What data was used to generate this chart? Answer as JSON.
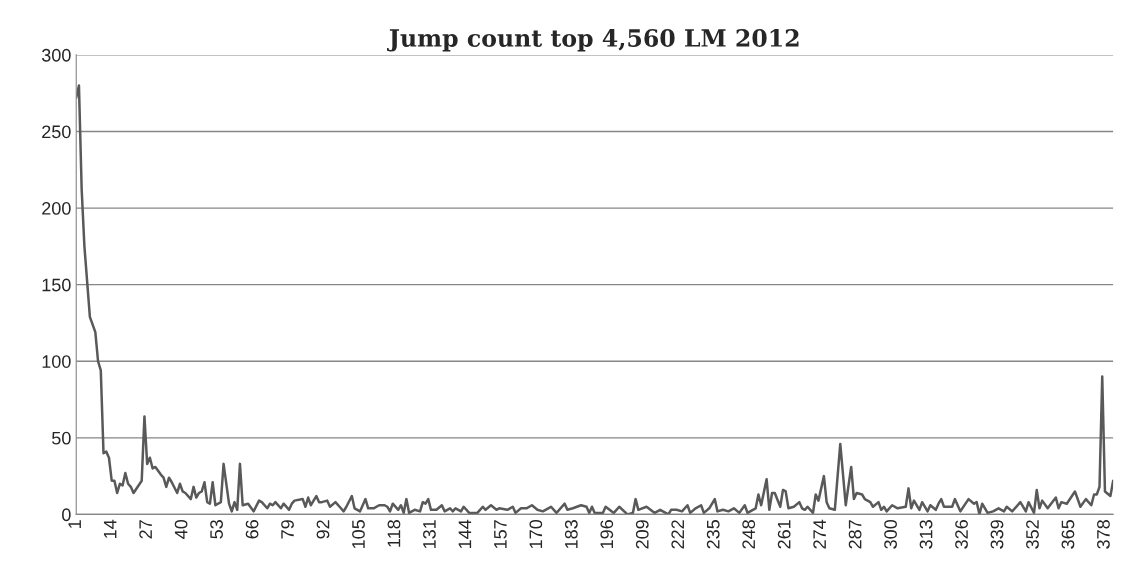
{
  "chart_data": {
    "type": "line",
    "title": "Jump count top 4,560 LM 2012",
    "x": [
      1,
      2,
      3,
      4,
      6,
      8,
      9,
      10,
      11,
      12,
      13,
      14,
      15,
      16,
      17,
      18,
      19,
      20,
      21,
      22,
      25,
      26,
      27,
      28,
      29,
      30,
      32,
      33,
      34,
      35,
      36,
      38,
      39,
      40,
      41,
      43,
      44,
      45,
      46,
      47,
      48,
      49,
      50,
      51,
      52,
      54,
      55,
      57,
      58,
      59,
      60,
      61,
      62,
      64,
      66,
      68,
      69,
      71,
      72,
      73,
      74,
      76,
      77,
      79,
      80,
      81,
      84,
      85,
      86,
      87,
      89,
      90,
      91,
      93,
      94,
      96,
      98,
      99,
      100,
      102,
      103,
      104,
      105,
      107,
      108,
      110,
      112,
      114,
      115,
      116,
      117,
      119,
      120,
      121,
      122,
      123,
      125,
      127,
      128,
      129,
      130,
      131,
      133,
      135,
      136,
      138,
      139,
      140,
      142,
      143,
      145,
      148,
      150,
      151,
      153,
      155,
      156,
      159,
      161,
      162,
      164,
      166,
      168,
      170,
      172,
      174,
      175,
      177,
      180,
      181,
      183,
      186,
      188,
      189,
      190,
      191,
      194,
      195,
      198,
      200,
      203,
      205,
      206,
      207,
      210,
      213,
      215,
      218,
      219,
      221,
      223,
      225,
      226,
      228,
      230,
      231,
      233,
      235,
      236,
      238,
      240,
      242,
      244,
      246,
      247,
      250,
      251,
      252,
      254,
      255,
      256,
      257,
      259,
      260,
      261,
      262,
      264,
      266,
      267,
      268,
      269,
      271,
      272,
      273,
      275,
      276,
      277,
      279,
      281,
      283,
      285,
      286,
      287,
      289,
      290,
      292,
      293,
      295,
      296,
      297,
      298,
      300,
      302,
      305,
      306,
      307,
      308,
      310,
      311,
      313,
      314,
      316,
      317,
      318,
      319,
      322,
      323,
      325,
      328,
      330,
      331,
      332,
      333,
      335,
      337,
      339,
      341,
      342,
      344,
      347,
      349,
      350,
      352,
      353,
      354,
      355,
      357,
      360,
      361,
      362,
      364,
      367,
      369,
      371,
      373,
      374,
      375,
      376,
      377,
      378,
      380,
      381
    ],
    "series": [
      {
        "color": "#595959",
        "values": [
          272,
          280,
          212,
          175,
          129,
          119,
          100,
          94,
          40,
          41,
          37,
          22,
          22,
          14,
          20,
          19,
          27,
          20,
          18,
          14,
          22,
          64,
          33,
          37,
          30,
          31,
          26,
          24,
          18,
          24,
          21,
          14,
          20,
          15,
          14,
          10,
          18,
          11,
          14,
          15,
          21,
          8,
          7,
          21,
          6,
          8,
          33,
          7,
          2,
          8,
          3,
          33,
          6,
          7,
          2,
          9,
          8,
          4,
          7,
          6,
          8,
          4,
          7,
          3,
          7,
          9,
          10,
          5,
          11,
          6,
          12,
          8,
          8,
          9,
          5,
          8,
          4,
          2,
          5,
          12,
          4,
          3,
          2,
          10,
          4,
          4,
          6,
          6,
          5,
          2,
          7,
          3,
          6,
          1,
          10,
          1,
          3,
          2,
          8,
          7,
          10,
          3,
          3,
          6,
          2,
          4,
          2,
          4,
          2,
          5,
          1,
          1,
          5,
          3,
          6,
          3,
          4,
          3,
          5,
          1,
          4,
          4,
          6,
          3,
          2,
          4,
          5,
          1,
          7,
          3,
          4,
          6,
          5,
          1,
          5,
          1,
          1,
          5,
          1,
          5,
          0,
          1,
          10,
          3,
          5,
          1,
          3,
          0,
          3,
          3,
          2,
          6,
          1,
          4,
          6,
          1,
          4,
          10,
          2,
          3,
          2,
          4,
          1,
          6,
          1,
          4,
          13,
          6,
          23,
          3,
          14,
          14,
          5,
          16,
          15,
          4,
          5,
          8,
          4,
          3,
          5,
          1,
          13,
          9,
          25,
          8,
          4,
          3,
          46,
          6,
          31,
          10,
          14,
          13,
          10,
          8,
          5,
          8,
          3,
          5,
          2,
          6,
          4,
          5,
          17,
          4,
          9,
          3,
          8,
          2,
          6,
          3,
          7,
          10,
          5,
          5,
          10,
          2,
          10,
          7,
          8,
          0,
          7,
          1,
          2,
          4,
          2,
          5,
          2,
          8,
          2,
          8,
          1,
          16,
          4,
          9,
          4,
          11,
          4,
          8,
          7,
          15,
          5,
          10,
          6,
          13,
          13,
          18,
          90,
          15,
          12,
          22
        ]
      }
    ],
    "xlim": [
      1,
      381
    ],
    "xticks": [
      1,
      14,
      27,
      40,
      53,
      66,
      79,
      92,
      105,
      118,
      131,
      144,
      157,
      170,
      183,
      196,
      209,
      222,
      235,
      248,
      261,
      274,
      287,
      300,
      313,
      326,
      339,
      352,
      365,
      378
    ],
    "ylim": [
      0,
      300
    ],
    "yticks": [
      0,
      50,
      100,
      150,
      200,
      250,
      300
    ],
    "grid": "y",
    "marker": "none",
    "line_style": "solid",
    "legend": false
  }
}
